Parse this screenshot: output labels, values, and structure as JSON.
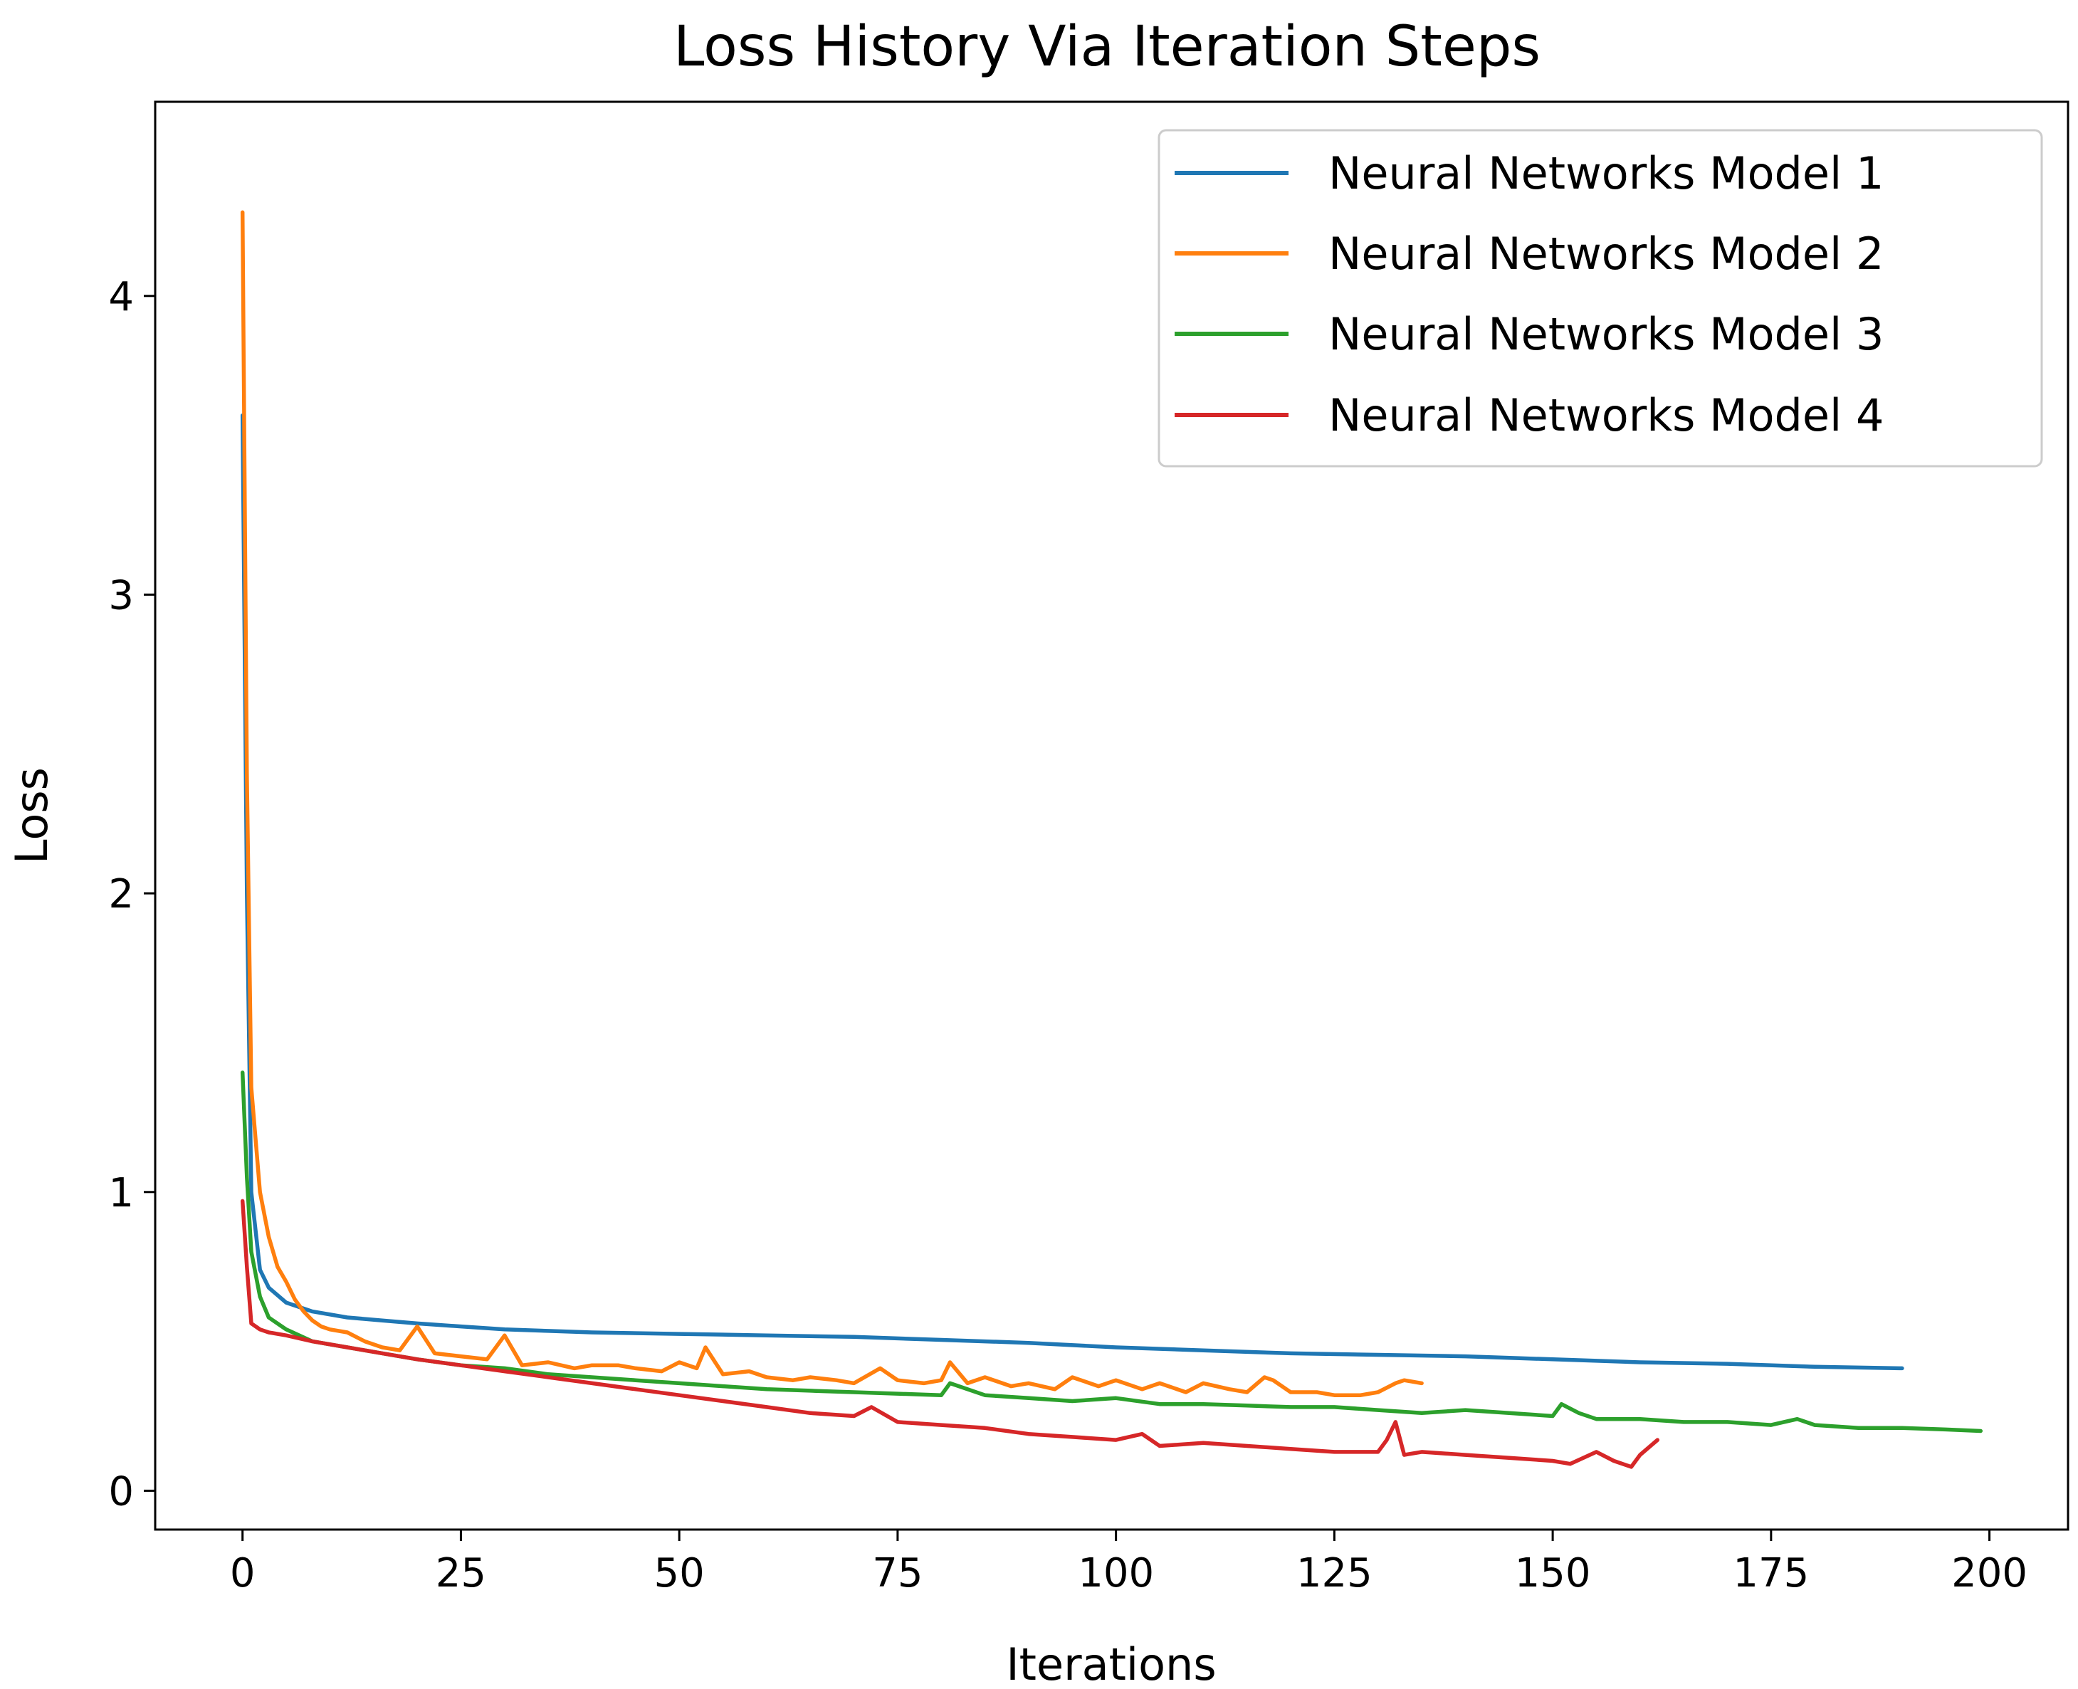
{
  "chart_data": {
    "type": "line",
    "title": "Loss History Via Iteration Steps",
    "xlabel": "Iterations",
    "ylabel": "Loss",
    "xlim": [
      -10,
      209
    ],
    "ylim": [
      -0.13,
      4.65
    ],
    "xticks": [
      0,
      25,
      50,
      75,
      100,
      125,
      150,
      175,
      200
    ],
    "yticks": [
      0,
      1,
      2,
      3,
      4
    ],
    "grid": false,
    "legend_position": "top-right",
    "series": [
      {
        "name": "Neural Networks Model 1",
        "color": "#1f77b4",
        "x": [
          0,
          0.5,
          1,
          2,
          3,
          5,
          8,
          12,
          16,
          20,
          25,
          30,
          35,
          40,
          50,
          60,
          70,
          80,
          90,
          100,
          110,
          120,
          130,
          140,
          150,
          160,
          170,
          180,
          190
        ],
        "y": [
          3.6,
          2.0,
          1.0,
          0.74,
          0.68,
          0.63,
          0.6,
          0.58,
          0.57,
          0.56,
          0.55,
          0.54,
          0.535,
          0.53,
          0.525,
          0.52,
          0.515,
          0.505,
          0.495,
          0.48,
          0.47,
          0.46,
          0.455,
          0.45,
          0.44,
          0.43,
          0.425,
          0.415,
          0.41
        ]
      },
      {
        "name": "Neural Networks Model 2",
        "color": "#ff7f0e",
        "x": [
          0,
          0.5,
          1,
          2,
          3,
          4,
          5,
          6,
          7,
          8,
          9,
          10,
          12,
          14,
          16,
          18,
          20,
          22,
          25,
          28,
          30,
          32,
          35,
          38,
          40,
          43,
          45,
          48,
          50,
          52,
          53,
          55,
          58,
          60,
          63,
          65,
          68,
          70,
          73,
          75,
          78,
          80,
          81,
          83,
          85,
          88,
          90,
          93,
          95,
          98,
          100,
          103,
          105,
          108,
          110,
          113,
          115,
          117,
          118,
          120,
          123,
          125,
          128,
          130,
          132,
          133,
          135
        ],
        "y": [
          4.28,
          2.4,
          1.35,
          1.0,
          0.85,
          0.75,
          0.7,
          0.64,
          0.6,
          0.57,
          0.55,
          0.54,
          0.53,
          0.5,
          0.48,
          0.47,
          0.55,
          0.46,
          0.45,
          0.44,
          0.52,
          0.42,
          0.43,
          0.41,
          0.42,
          0.42,
          0.41,
          0.4,
          0.43,
          0.41,
          0.48,
          0.39,
          0.4,
          0.38,
          0.37,
          0.38,
          0.37,
          0.36,
          0.41,
          0.37,
          0.36,
          0.37,
          0.43,
          0.36,
          0.38,
          0.35,
          0.36,
          0.34,
          0.38,
          0.35,
          0.37,
          0.34,
          0.36,
          0.33,
          0.36,
          0.34,
          0.33,
          0.38,
          0.37,
          0.33,
          0.33,
          0.32,
          0.32,
          0.33,
          0.36,
          0.37,
          0.36
        ]
      },
      {
        "name": "Neural Networks Model 3",
        "color": "#2ca02c",
        "x": [
          0,
          0.5,
          1,
          2,
          3,
          5,
          8,
          12,
          16,
          20,
          25,
          30,
          35,
          40,
          45,
          50,
          55,
          60,
          65,
          70,
          75,
          80,
          81,
          85,
          90,
          95,
          100,
          105,
          110,
          115,
          120,
          125,
          130,
          135,
          140,
          145,
          150,
          151,
          153,
          155,
          160,
          165,
          170,
          175,
          178,
          180,
          185,
          190,
          195,
          199
        ],
        "y": [
          1.4,
          1.05,
          0.8,
          0.65,
          0.58,
          0.54,
          0.5,
          0.48,
          0.46,
          0.44,
          0.42,
          0.41,
          0.39,
          0.38,
          0.37,
          0.36,
          0.35,
          0.34,
          0.335,
          0.33,
          0.325,
          0.32,
          0.36,
          0.32,
          0.31,
          0.3,
          0.31,
          0.29,
          0.29,
          0.285,
          0.28,
          0.28,
          0.27,
          0.26,
          0.27,
          0.26,
          0.25,
          0.29,
          0.26,
          0.24,
          0.24,
          0.23,
          0.23,
          0.22,
          0.24,
          0.22,
          0.21,
          0.21,
          0.205,
          0.2
        ]
      },
      {
        "name": "Neural Networks Model 4",
        "color": "#d62728",
        "x": [
          0,
          0.5,
          1,
          2,
          3,
          5,
          8,
          12,
          16,
          20,
          25,
          30,
          35,
          40,
          45,
          50,
          55,
          60,
          65,
          70,
          72,
          75,
          80,
          85,
          90,
          95,
          100,
          103,
          105,
          110,
          115,
          120,
          125,
          130,
          131,
          132,
          133,
          135,
          140,
          145,
          150,
          152,
          155,
          157,
          159,
          160,
          162
        ],
        "y": [
          0.97,
          0.75,
          0.56,
          0.54,
          0.53,
          0.52,
          0.5,
          0.48,
          0.46,
          0.44,
          0.42,
          0.4,
          0.38,
          0.36,
          0.34,
          0.32,
          0.3,
          0.28,
          0.26,
          0.25,
          0.28,
          0.23,
          0.22,
          0.21,
          0.19,
          0.18,
          0.17,
          0.19,
          0.15,
          0.16,
          0.15,
          0.14,
          0.13,
          0.13,
          0.17,
          0.23,
          0.12,
          0.13,
          0.12,
          0.11,
          0.1,
          0.09,
          0.13,
          0.1,
          0.08,
          0.12,
          0.17
        ]
      }
    ]
  }
}
